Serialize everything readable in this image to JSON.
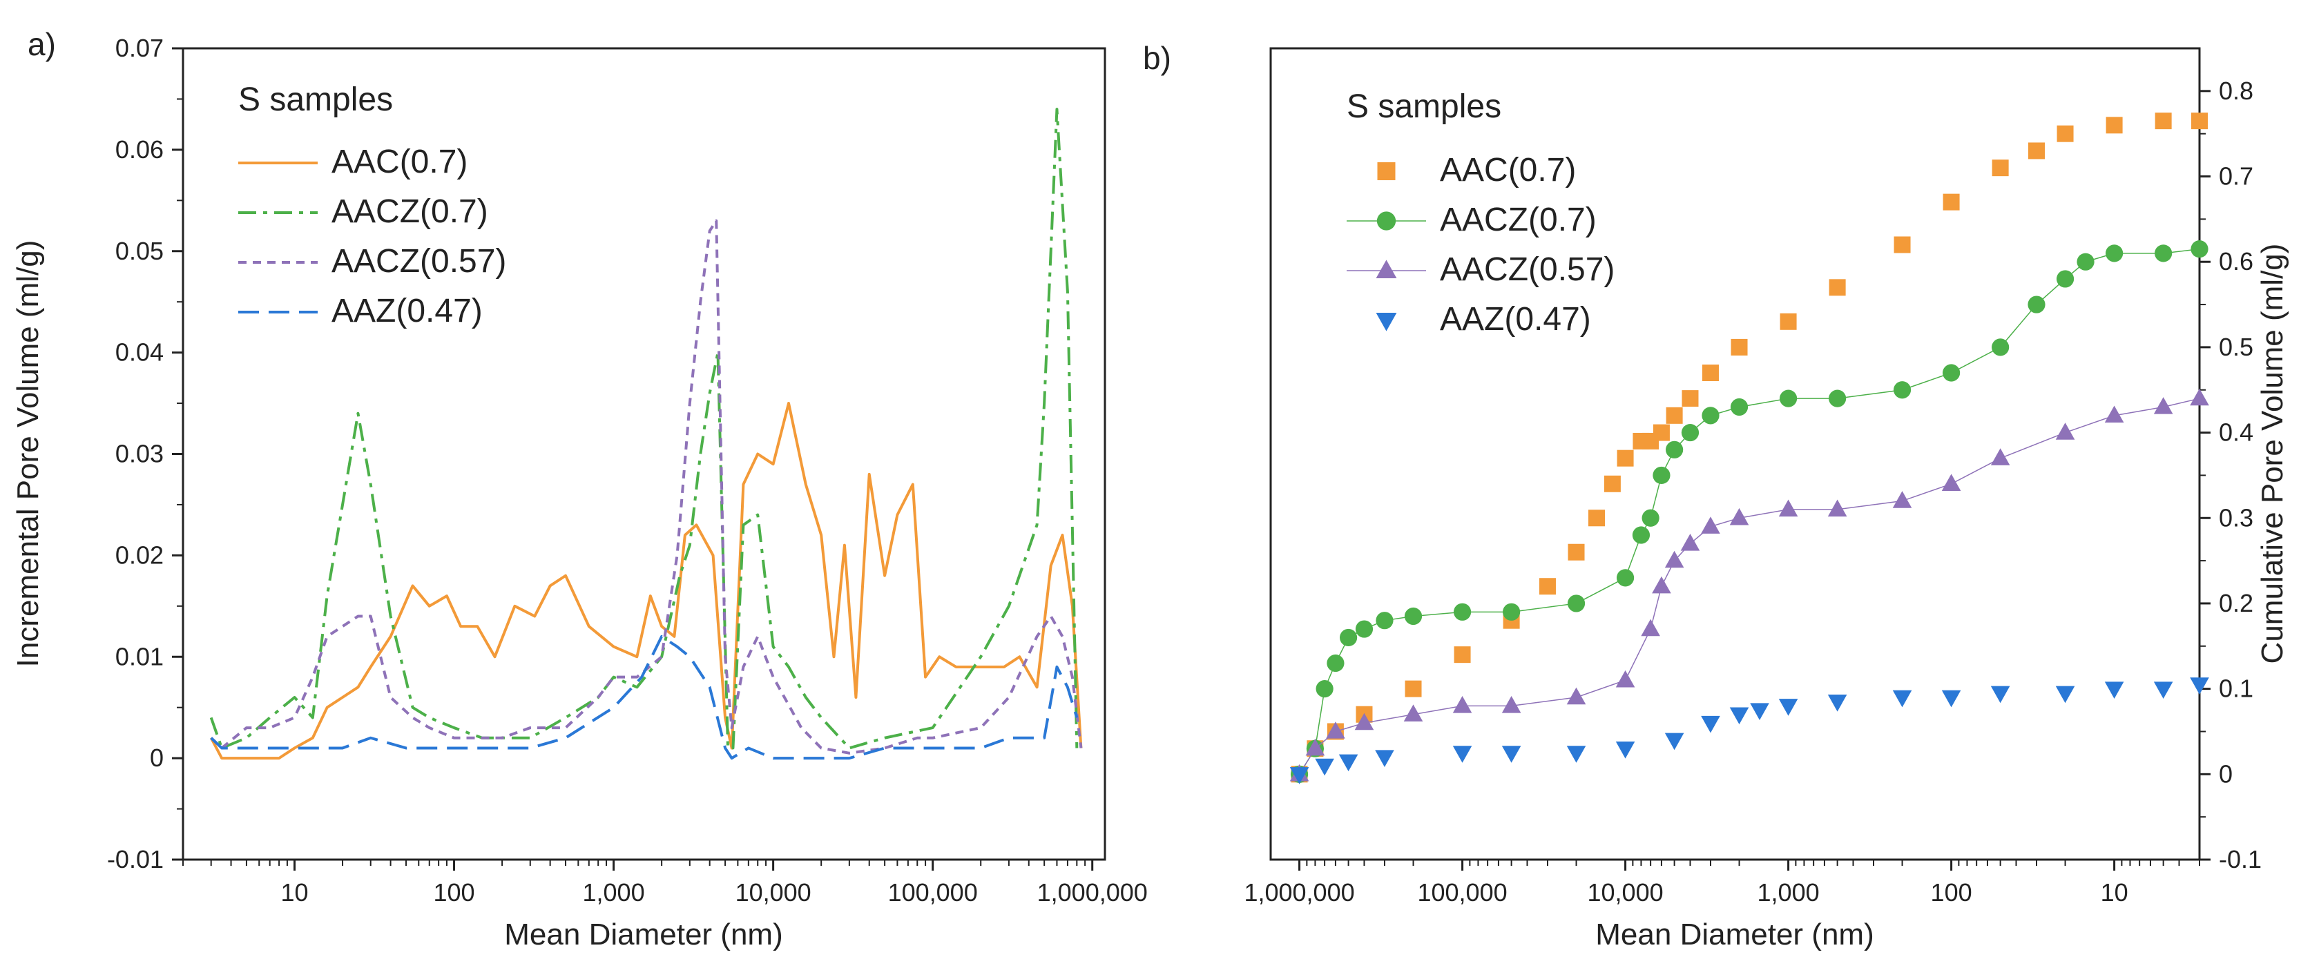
{
  "colors": {
    "AAC(0.7)": "#f39a38",
    "AACZ(0.7)": "#4cb049",
    "AACZ(0.57)": "#8e72b8",
    "AAZ(0.47)": "#2a78d6",
    "axis": "#222222"
  },
  "chart_data": [
    {
      "panel": "a)",
      "type": "line",
      "xlabel": "Mean Diameter (nm)",
      "ylabel": "Incremental Pore Volume (ml/g)",
      "xscale": "log",
      "xlim": [
        2,
        1200000
      ],
      "ylim": [
        -0.01,
        0.07
      ],
      "x_ticks": [
        10,
        100,
        1000,
        10000,
        100000,
        1000000
      ],
      "x_tick_labels": [
        "10",
        "100",
        "1,000",
        "10,000",
        "100,000",
        "1,000,000"
      ],
      "y_ticks": [
        -0.01,
        0,
        0.01,
        0.02,
        0.03,
        0.04,
        0.05,
        0.06,
        0.07
      ],
      "y_tick_labels": [
        "-0.01",
        "0",
        "0.01",
        "0.02",
        "0.03",
        "0.04",
        "0.05",
        "0.06",
        "0.07"
      ],
      "legend_title": "S samples",
      "legend_position": "top-left",
      "series": [
        {
          "name": "AAC(0.7)",
          "style": "solid",
          "x": [
            3,
            3.5,
            5,
            8,
            10,
            13,
            16,
            20,
            25,
            30,
            40,
            55,
            70,
            90,
            110,
            140,
            180,
            240,
            320,
            400,
            500,
            700,
            1000,
            1400,
            1700,
            2000,
            2400,
            2800,
            3300,
            4200,
            5000,
            5500,
            6500,
            8000,
            10000,
            12500,
            16000,
            20000,
            24000,
            28000,
            33000,
            40000,
            50000,
            60000,
            75000,
            90000,
            110000,
            140000,
            200000,
            280000,
            350000,
            450000,
            550000,
            650000,
            750000,
            850000
          ],
          "y": [
            0.002,
            0,
            0,
            0,
            0.001,
            0.002,
            0.005,
            0.006,
            0.007,
            0.009,
            0.012,
            0.017,
            0.015,
            0.016,
            0.013,
            0.013,
            0.01,
            0.015,
            0.014,
            0.017,
            0.018,
            0.013,
            0.011,
            0.01,
            0.016,
            0.013,
            0.012,
            0.022,
            0.023,
            0.02,
            0.004,
            0.001,
            0.027,
            0.03,
            0.029,
            0.035,
            0.027,
            0.022,
            0.01,
            0.021,
            0.006,
            0.028,
            0.018,
            0.024,
            0.027,
            0.008,
            0.01,
            0.009,
            0.009,
            0.009,
            0.01,
            0.007,
            0.019,
            0.022,
            0.015,
            0.001
          ]
        },
        {
          "name": "AACZ(0.7)",
          "style": "dashdot",
          "x": [
            3,
            3.5,
            5,
            7,
            10,
            13,
            16,
            20,
            25,
            30,
            40,
            55,
            70,
            100,
            150,
            200,
            300,
            500,
            800,
            1000,
            1400,
            2000,
            2600,
            3000,
            3500,
            4000,
            4500,
            5200,
            5600,
            6500,
            8000,
            10000,
            12500,
            16000,
            20000,
            30000,
            50000,
            100000,
            200000,
            300000,
            450000,
            500000,
            550000,
            600000,
            700000,
            800000
          ],
          "y": [
            0.004,
            0.001,
            0.002,
            0.004,
            0.006,
            0.004,
            0.016,
            0.025,
            0.034,
            0.027,
            0.014,
            0.005,
            0.004,
            0.003,
            0.002,
            0.002,
            0.002,
            0.004,
            0.006,
            0.008,
            0.007,
            0.01,
            0.018,
            0.021,
            0.03,
            0.036,
            0.04,
            0.001,
            0.001,
            0.023,
            0.024,
            0.011,
            0.009,
            0.006,
            0.004,
            0.001,
            0.002,
            0.003,
            0.01,
            0.015,
            0.023,
            0.035,
            0.05,
            0.064,
            0.046,
            0.001
          ]
        },
        {
          "name": "AACZ(0.57)",
          "style": "dotted",
          "x": [
            3,
            3.5,
            5,
            7,
            10,
            13,
            16,
            20,
            25,
            30,
            40,
            55,
            70,
            100,
            150,
            200,
            300,
            500,
            800,
            1000,
            1400,
            2000,
            2500,
            3000,
            3500,
            4000,
            4400,
            5000,
            5500,
            6500,
            8000,
            10000,
            15000,
            20000,
            30000,
            50000,
            80000,
            100000,
            200000,
            300000,
            450000,
            550000,
            650000,
            750000,
            850000
          ],
          "y": [
            0.002,
            0.001,
            0.003,
            0.003,
            0.004,
            0.008,
            0.012,
            0.013,
            0.014,
            0.014,
            0.006,
            0.004,
            0.003,
            0.002,
            0.002,
            0.002,
            0.003,
            0.003,
            0.006,
            0.008,
            0.008,
            0.01,
            0.02,
            0.035,
            0.045,
            0.052,
            0.053,
            0.01,
            0.003,
            0.009,
            0.012,
            0.008,
            0.003,
            0.001,
            0.0005,
            0.001,
            0.002,
            0.002,
            0.003,
            0.006,
            0.012,
            0.014,
            0.012,
            0.008,
            0.001
          ]
        },
        {
          "name": "AAZ(0.47)",
          "style": "dashed",
          "x": [
            3,
            3.5,
            5,
            10,
            20,
            30,
            50,
            100,
            200,
            300,
            500,
            1000,
            1500,
            2000,
            2500,
            3000,
            4000,
            5000,
            5500,
            7000,
            10000,
            20000,
            30000,
            50000,
            100000,
            200000,
            300000,
            500000,
            600000,
            700000,
            800000
          ],
          "y": [
            0.002,
            0.001,
            0.001,
            0.001,
            0.001,
            0.002,
            0.001,
            0.001,
            0.001,
            0.001,
            0.002,
            0.005,
            0.008,
            0.012,
            0.011,
            0.01,
            0.007,
            0.001,
            0,
            0.001,
            0,
            0,
            0,
            0.001,
            0.001,
            0.001,
            0.002,
            0.002,
            0.009,
            0.007,
            0.004
          ]
        }
      ]
    },
    {
      "panel": "b)",
      "type": "scatter",
      "xlabel": "Mean Diameter (nm)",
      "ylabel": "Cumulative Pore Volume (ml/g)",
      "xscale": "log",
      "xreversed": true,
      "xlim": [
        1500000,
        3
      ],
      "ylim": [
        -0.1,
        0.85
      ],
      "x_ticks": [
        1000000,
        100000,
        10000,
        1000,
        100,
        10
      ],
      "x_tick_labels": [
        "1,000,000",
        "100,000",
        "10,000",
        "1,000",
        "100",
        "10"
      ],
      "y_ticks": [
        -0.1,
        0,
        0.1,
        0.2,
        0.3,
        0.4,
        0.5,
        0.6,
        0.7,
        0.8
      ],
      "y_tick_labels": [
        "-0.1",
        "0",
        "0.1",
        "0.2",
        "0.3",
        "0.4",
        "0.5",
        "0.6",
        "0.7",
        "0.8"
      ],
      "legend_title": "S samples",
      "legend_position": "top-left",
      "series": [
        {
          "name": "AAC(0.7)",
          "marker": "square",
          "connected": false,
          "x": [
            1000000,
            800000,
            600000,
            400000,
            200000,
            100000,
            50000,
            30000,
            20000,
            15000,
            12000,
            10000,
            8000,
            7000,
            6000,
            5000,
            4000,
            3000,
            2000,
            1000,
            500,
            200,
            100,
            50,
            30,
            20,
            10,
            5,
            3
          ],
          "y": [
            0,
            0.03,
            0.05,
            0.07,
            0.1,
            0.14,
            0.18,
            0.22,
            0.26,
            0.3,
            0.34,
            0.37,
            0.39,
            0.39,
            0.4,
            0.42,
            0.44,
            0.47,
            0.5,
            0.53,
            0.57,
            0.62,
            0.67,
            0.71,
            0.73,
            0.75,
            0.76,
            0.765,
            0.765
          ]
        },
        {
          "name": "AACZ(0.7)",
          "marker": "circle",
          "connected": true,
          "x": [
            1000000,
            800000,
            700000,
            600000,
            500000,
            400000,
            300000,
            200000,
            100000,
            50000,
            20000,
            10000,
            8000,
            7000,
            6000,
            5000,
            4000,
            3000,
            2000,
            1000,
            500,
            200,
            100,
            50,
            30,
            20,
            15,
            10,
            5,
            3
          ],
          "y": [
            0,
            0.03,
            0.1,
            0.13,
            0.16,
            0.17,
            0.18,
            0.185,
            0.19,
            0.19,
            0.2,
            0.23,
            0.28,
            0.3,
            0.35,
            0.38,
            0.4,
            0.42,
            0.43,
            0.44,
            0.44,
            0.45,
            0.47,
            0.5,
            0.55,
            0.58,
            0.6,
            0.61,
            0.61,
            0.615
          ]
        },
        {
          "name": "AACZ(0.57)",
          "marker": "triangle-up",
          "connected": true,
          "x": [
            1000000,
            800000,
            600000,
            400000,
            200000,
            100000,
            50000,
            20000,
            10000,
            7000,
            6000,
            5000,
            4000,
            3000,
            2000,
            1000,
            500,
            200,
            100,
            50,
            20,
            10,
            5,
            3
          ],
          "y": [
            0,
            0.03,
            0.05,
            0.06,
            0.07,
            0.08,
            0.08,
            0.09,
            0.11,
            0.17,
            0.22,
            0.25,
            0.27,
            0.29,
            0.3,
            0.31,
            0.31,
            0.32,
            0.34,
            0.37,
            0.4,
            0.42,
            0.43,
            0.44
          ]
        },
        {
          "name": "AAZ(0.47)",
          "marker": "triangle-down",
          "connected": false,
          "x": [
            1000000,
            700000,
            500000,
            300000,
            100000,
            50000,
            20000,
            10000,
            5000,
            3000,
            2000,
            1500,
            1000,
            500,
            200,
            100,
            50,
            20,
            10,
            5,
            3
          ],
          "y": [
            0,
            0.01,
            0.015,
            0.02,
            0.025,
            0.025,
            0.025,
            0.03,
            0.04,
            0.06,
            0.07,
            0.075,
            0.08,
            0.085,
            0.09,
            0.09,
            0.095,
            0.095,
            0.1,
            0.1,
            0.105
          ]
        }
      ]
    }
  ]
}
